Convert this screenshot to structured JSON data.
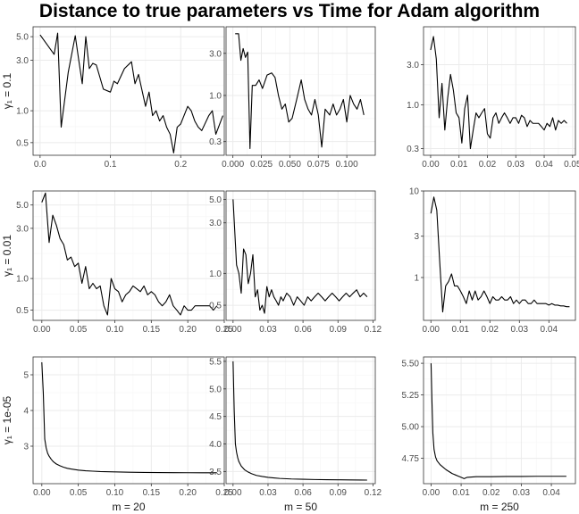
{
  "title": "Distance to true parameters vs Time for Adam algorithm",
  "row_labels": [
    "γ₁ = 0.1",
    "γ₁ = 0.01",
    "γ₁ = 1e-05"
  ],
  "col_labels": [
    "m = 20",
    "m = 50",
    "m = 250"
  ],
  "colors": {
    "line": "#000000",
    "grid_major": "#ebebeb",
    "grid_minor": "#f5f5f5",
    "panel_border": "#333333",
    "tick_text": "#4d4d4d"
  },
  "chart_data": [
    {
      "type": "line",
      "row": 0,
      "col": 0,
      "y_scale": "log",
      "xlim": [
        -0.01,
        0.262
      ],
      "ylim": [
        0.38,
        6.2
      ],
      "x_ticks": [
        0.0,
        0.1,
        0.2
      ],
      "x_tick_labels": [
        "0.0",
        "0.1",
        "0.2"
      ],
      "y_ticks": [
        0.5,
        1.0,
        3.0,
        5.0
      ],
      "y_tick_labels": [
        "0.5",
        "1.0",
        "3.0",
        "5.0"
      ],
      "series": [
        {
          "x": [
            0.0,
            0.02,
            0.025,
            0.03,
            0.04,
            0.05,
            0.055,
            0.06,
            0.065,
            0.07,
            0.075,
            0.08,
            0.09,
            0.1,
            0.105,
            0.11,
            0.12,
            0.13,
            0.135,
            0.14,
            0.15,
            0.155,
            0.16,
            0.165,
            0.17,
            0.175,
            0.18,
            0.185,
            0.19,
            0.195,
            0.2,
            0.21,
            0.215,
            0.22,
            0.225,
            0.23,
            0.24,
            0.245,
            0.25,
            0.26
          ],
          "y": [
            5.2,
            3.4,
            5.4,
            0.7,
            2.3,
            5.1,
            3.0,
            1.8,
            5.0,
            2.5,
            2.8,
            2.7,
            1.6,
            1.5,
            1.9,
            1.8,
            2.5,
            2.9,
            1.8,
            2.2,
            1.1,
            1.5,
            0.9,
            1.0,
            0.8,
            0.9,
            0.7,
            0.6,
            0.4,
            0.7,
            0.75,
            1.1,
            1.0,
            0.8,
            0.7,
            0.65,
            0.9,
            1.0,
            0.6,
            0.9
          ]
        }
      ]
    },
    {
      "type": "line",
      "row": 0,
      "col": 1,
      "y_scale": "log",
      "xlim": [
        -0.006,
        0.125
      ],
      "ylim": [
        0.21,
        6.0
      ],
      "x_ticks": [
        0.0,
        0.025,
        0.05,
        0.075,
        0.1
      ],
      "x_tick_labels": [
        "0.000",
        "0.025",
        "0.050",
        "0.075",
        "0.100"
      ],
      "y_ticks": [
        0.3,
        1.0,
        3.0
      ],
      "y_tick_labels": [
        "0.3",
        "1.0",
        "3.0"
      ],
      "series": [
        {
          "x": [
            0.002,
            0.005,
            0.007,
            0.009,
            0.011,
            0.013,
            0.015,
            0.017,
            0.02,
            0.023,
            0.026,
            0.03,
            0.034,
            0.037,
            0.04,
            0.043,
            0.046,
            0.049,
            0.052,
            0.056,
            0.06,
            0.063,
            0.066,
            0.069,
            0.072,
            0.075,
            0.078,
            0.081,
            0.085,
            0.088,
            0.091,
            0.094,
            0.097,
            0.1,
            0.103,
            0.106,
            0.109,
            0.112,
            0.115
          ],
          "y": [
            5.0,
            5.0,
            2.5,
            3.4,
            2.7,
            3.1,
            0.25,
            1.3,
            1.3,
            1.5,
            1.2,
            1.7,
            1.8,
            1.6,
            1.0,
            0.7,
            0.8,
            0.5,
            0.55,
            0.9,
            1.5,
            0.9,
            0.7,
            0.6,
            0.9,
            0.6,
            0.26,
            0.7,
            0.6,
            0.8,
            0.6,
            0.7,
            0.9,
            0.5,
            1.0,
            0.8,
            0.7,
            0.9,
            0.6
          ]
        }
      ]
    },
    {
      "type": "line",
      "row": 0,
      "col": 2,
      "y_scale": "log",
      "xlim": [
        -0.0025,
        0.051
      ],
      "ylim": [
        0.25,
        8.5
      ],
      "x_ticks": [
        0.0,
        0.01,
        0.02,
        0.03,
        0.04,
        0.05
      ],
      "x_tick_labels": [
        "0.00",
        "0.01",
        "0.02",
        "0.03",
        "0.04",
        "0.05"
      ],
      "y_ticks": [
        0.3,
        1.0,
        3.0
      ],
      "y_tick_labels": [
        "0.3",
        "1.0",
        "3.0"
      ],
      "series": [
        {
          "x": [
            0.0,
            0.001,
            0.002,
            0.003,
            0.004,
            0.005,
            0.006,
            0.007,
            0.008,
            0.009,
            0.01,
            0.011,
            0.012,
            0.013,
            0.014,
            0.015,
            0.016,
            0.017,
            0.018,
            0.019,
            0.02,
            0.021,
            0.022,
            0.023,
            0.024,
            0.025,
            0.026,
            0.027,
            0.028,
            0.029,
            0.03,
            0.031,
            0.032,
            0.033,
            0.034,
            0.035,
            0.036,
            0.037,
            0.038,
            0.039,
            0.04,
            0.041,
            0.042,
            0.043,
            0.044,
            0.045,
            0.046,
            0.047,
            0.048
          ],
          "y": [
            4.5,
            6.5,
            3.5,
            0.7,
            1.8,
            0.5,
            1.2,
            2.3,
            1.5,
            0.8,
            0.7,
            0.35,
            0.9,
            1.3,
            0.3,
            0.5,
            0.8,
            0.7,
            0.8,
            0.9,
            0.45,
            0.4,
            0.7,
            0.8,
            0.6,
            0.7,
            0.8,
            0.7,
            0.6,
            0.7,
            0.7,
            0.6,
            0.75,
            0.7,
            0.55,
            0.65,
            0.6,
            0.6,
            0.6,
            0.55,
            0.5,
            0.6,
            0.55,
            0.7,
            0.5,
            0.65,
            0.6,
            0.65,
            0.6
          ]
        }
      ]
    },
    {
      "type": "line",
      "row": 1,
      "col": 0,
      "y_scale": "log",
      "xlim": [
        -0.012,
        0.25
      ],
      "ylim": [
        0.4,
        6.8
      ],
      "x_ticks": [
        0.0,
        0.05,
        0.1,
        0.15,
        0.2,
        0.25
      ],
      "x_tick_labels": [
        "0.00",
        "0.05",
        "0.10",
        "0.15",
        "0.20",
        "0.25"
      ],
      "y_ticks": [
        0.5,
        1.0,
        3.0,
        5.0
      ],
      "y_tick_labels": [
        "0.5",
        "1.0",
        "3.0",
        "5.0"
      ],
      "series": [
        {
          "x": [
            0.0,
            0.005,
            0.01,
            0.015,
            0.02,
            0.025,
            0.03,
            0.035,
            0.04,
            0.045,
            0.05,
            0.055,
            0.06,
            0.065,
            0.07,
            0.075,
            0.08,
            0.085,
            0.09,
            0.095,
            0.1,
            0.105,
            0.11,
            0.115,
            0.12,
            0.125,
            0.13,
            0.135,
            0.14,
            0.145,
            0.15,
            0.155,
            0.16,
            0.165,
            0.17,
            0.175,
            0.18,
            0.185,
            0.19,
            0.195,
            0.2,
            0.205,
            0.21,
            0.215,
            0.22,
            0.225,
            0.23,
            0.235,
            0.24
          ],
          "y": [
            5.3,
            6.5,
            2.2,
            4.0,
            3.2,
            2.4,
            2.1,
            1.5,
            1.6,
            1.3,
            1.4,
            0.9,
            1.3,
            0.8,
            0.9,
            0.8,
            0.85,
            0.55,
            0.45,
            1.0,
            0.8,
            0.75,
            0.6,
            0.7,
            0.75,
            0.85,
            0.8,
            0.75,
            0.85,
            0.7,
            0.75,
            0.7,
            0.6,
            0.55,
            0.6,
            0.7,
            0.55,
            0.5,
            0.45,
            0.55,
            0.5,
            0.5,
            0.55,
            0.55,
            0.55,
            0.55,
            0.55,
            0.5,
            0.55
          ]
        }
      ]
    },
    {
      "type": "line",
      "row": 1,
      "col": 1,
      "y_scale": "log",
      "xlim": [
        -0.006,
        0.122
      ],
      "ylim": [
        0.36,
        6.0
      ],
      "x_ticks": [
        0.0,
        0.03,
        0.06,
        0.09,
        0.12
      ],
      "x_tick_labels": [
        "0.00",
        "0.03",
        "0.06",
        "0.09",
        "0.12"
      ],
      "y_ticks": [
        0.5,
        1.0,
        3.0,
        5.0
      ],
      "y_tick_labels": [
        "0.5",
        "1.0",
        "3.0",
        "5.0"
      ],
      "series": [
        {
          "x": [
            0.0,
            0.003,
            0.005,
            0.007,
            0.009,
            0.011,
            0.013,
            0.015,
            0.017,
            0.019,
            0.021,
            0.023,
            0.025,
            0.027,
            0.029,
            0.031,
            0.033,
            0.035,
            0.037,
            0.039,
            0.041,
            0.043,
            0.046,
            0.049,
            0.052,
            0.055,
            0.058,
            0.061,
            0.064,
            0.067,
            0.07,
            0.073,
            0.076,
            0.079,
            0.082,
            0.085,
            0.088,
            0.091,
            0.094,
            0.097,
            0.1,
            0.103,
            0.106,
            0.109,
            0.112,
            0.115
          ],
          "y": [
            5.0,
            1.2,
            1.0,
            0.65,
            1.7,
            1.5,
            0.8,
            1.0,
            1.5,
            0.6,
            0.7,
            0.45,
            0.5,
            0.42,
            0.75,
            0.6,
            0.7,
            0.6,
            0.55,
            0.5,
            0.6,
            0.55,
            0.65,
            0.6,
            0.5,
            0.6,
            0.55,
            0.5,
            0.6,
            0.55,
            0.6,
            0.65,
            0.6,
            0.55,
            0.6,
            0.65,
            0.6,
            0.55,
            0.6,
            0.65,
            0.6,
            0.65,
            0.7,
            0.6,
            0.65,
            0.6
          ]
        }
      ]
    },
    {
      "type": "line",
      "row": 1,
      "col": 2,
      "y_scale": "log",
      "xlim": [
        -0.0025,
        0.049
      ],
      "ylim": [
        0.32,
        10.0
      ],
      "x_ticks": [
        0.0,
        0.01,
        0.02,
        0.03,
        0.04
      ],
      "x_tick_labels": [
        "0.00",
        "0.01",
        "0.02",
        "0.03",
        "0.04"
      ],
      "y_ticks": [
        1,
        3,
        10
      ],
      "y_tick_labels": [
        "1",
        "3",
        "10"
      ],
      "series": [
        {
          "x": [
            0.0,
            0.001,
            0.002,
            0.003,
            0.004,
            0.005,
            0.006,
            0.007,
            0.008,
            0.009,
            0.01,
            0.011,
            0.012,
            0.013,
            0.014,
            0.015,
            0.016,
            0.017,
            0.018,
            0.019,
            0.02,
            0.021,
            0.022,
            0.023,
            0.024,
            0.025,
            0.026,
            0.027,
            0.028,
            0.029,
            0.03,
            0.031,
            0.032,
            0.033,
            0.034,
            0.035,
            0.036,
            0.037,
            0.038,
            0.039,
            0.04,
            0.041,
            0.042,
            0.043,
            0.044,
            0.045,
            0.046,
            0.047
          ],
          "y": [
            5.5,
            8.5,
            6.0,
            1.5,
            0.4,
            0.8,
            0.9,
            1.1,
            0.8,
            0.8,
            0.7,
            0.6,
            0.5,
            0.7,
            0.55,
            0.7,
            0.55,
            0.6,
            0.7,
            0.6,
            0.5,
            0.6,
            0.55,
            0.55,
            0.6,
            0.55,
            0.55,
            0.6,
            0.5,
            0.55,
            0.5,
            0.55,
            0.55,
            0.5,
            0.5,
            0.55,
            0.5,
            0.5,
            0.5,
            0.5,
            0.48,
            0.5,
            0.48,
            0.48,
            0.47,
            0.47,
            0.46,
            0.46
          ]
        }
      ]
    },
    {
      "type": "line",
      "row": 2,
      "col": 0,
      "y_scale": "linear",
      "xlim": [
        -0.012,
        0.25
      ],
      "ylim": [
        1.95,
        5.5
      ],
      "x_ticks": [
        0.0,
        0.05,
        0.1,
        0.15,
        0.2,
        0.25
      ],
      "x_tick_labels": [
        "0.00",
        "0.05",
        "0.10",
        "0.15",
        "0.20",
        "0.25"
      ],
      "y_ticks": [
        3,
        4,
        5
      ],
      "y_tick_labels": [
        "3",
        "4",
        "5"
      ],
      "series": [
        {
          "x": [
            0.0,
            0.002,
            0.004,
            0.006,
            0.008,
            0.01,
            0.013,
            0.016,
            0.02,
            0.025,
            0.03,
            0.035,
            0.04,
            0.05,
            0.06,
            0.07,
            0.08,
            0.1,
            0.12,
            0.14,
            0.16,
            0.18,
            0.2,
            0.22,
            0.24
          ],
          "y": [
            5.35,
            4.5,
            3.2,
            2.95,
            2.8,
            2.72,
            2.63,
            2.56,
            2.5,
            2.45,
            2.41,
            2.38,
            2.36,
            2.33,
            2.31,
            2.3,
            2.29,
            2.28,
            2.27,
            2.265,
            2.26,
            2.258,
            2.256,
            2.255,
            2.255
          ]
        }
      ]
    },
    {
      "type": "line",
      "row": 2,
      "col": 1,
      "y_scale": "linear",
      "xlim": [
        -0.006,
        0.122
      ],
      "ylim": [
        3.28,
        5.58
      ],
      "x_ticks": [
        0.0,
        0.03,
        0.06,
        0.09,
        0.12
      ],
      "x_tick_labels": [
        "0.00",
        "0.03",
        "0.06",
        "0.09",
        "0.12"
      ],
      "y_ticks": [
        3.5,
        4.0,
        4.5,
        5.0,
        5.5
      ],
      "y_tick_labels": [
        "3.5",
        "4.0",
        "4.5",
        "5.0",
        "5.5"
      ],
      "series": [
        {
          "x": [
            0.0,
            0.001,
            0.002,
            0.003,
            0.004,
            0.005,
            0.007,
            0.01,
            0.013,
            0.016,
            0.02,
            0.025,
            0.03,
            0.035,
            0.04,
            0.05,
            0.06,
            0.07,
            0.08,
            0.09,
            0.1,
            0.11,
            0.115
          ],
          "y": [
            5.5,
            4.6,
            4.0,
            3.85,
            3.75,
            3.68,
            3.6,
            3.53,
            3.49,
            3.46,
            3.43,
            3.41,
            3.395,
            3.385,
            3.375,
            3.365,
            3.36,
            3.355,
            3.352,
            3.35,
            3.348,
            3.346,
            3.345
          ]
        }
      ]
    },
    {
      "type": "line",
      "row": 2,
      "col": 2,
      "y_scale": "linear",
      "xlim": [
        -0.0025,
        0.048
      ],
      "ylim": [
        4.55,
        5.55
      ],
      "x_ticks": [
        0.0,
        0.01,
        0.02,
        0.03,
        0.04
      ],
      "x_tick_labels": [
        "0.00",
        "0.01",
        "0.02",
        "0.03",
        "0.04"
      ],
      "y_ticks": [
        4.75,
        5.0,
        5.25,
        5.5
      ],
      "y_tick_labels": [
        "4.75",
        "5.00",
        "5.25",
        "5.50"
      ],
      "series": [
        {
          "x": [
            0.0,
            0.0003,
            0.0006,
            0.001,
            0.0015,
            0.002,
            0.003,
            0.004,
            0.005,
            0.006,
            0.007,
            0.008,
            0.009,
            0.01,
            0.011,
            0.012,
            0.015,
            0.02,
            0.025,
            0.03,
            0.035,
            0.04,
            0.045
          ],
          "y": [
            5.5,
            5.2,
            4.95,
            4.82,
            4.76,
            4.73,
            4.7,
            4.68,
            4.66,
            4.645,
            4.63,
            4.62,
            4.61,
            4.6,
            4.59,
            4.6,
            4.605,
            4.605,
            4.607,
            4.607,
            4.608,
            4.608,
            4.608
          ]
        }
      ]
    }
  ]
}
